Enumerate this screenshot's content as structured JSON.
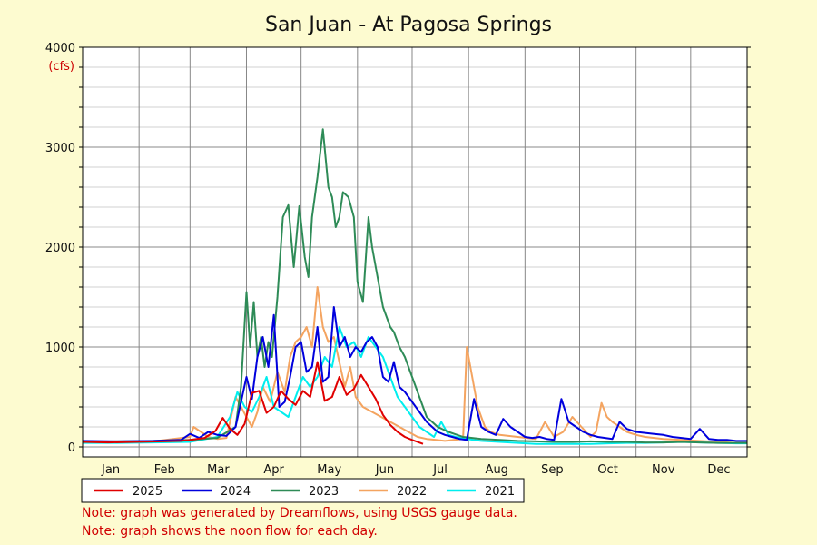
{
  "chart_data": {
    "type": "line",
    "title": "San Juan - At Pagosa Springs",
    "y_unit": "(cfs)",
    "ylim": [
      0,
      4000
    ],
    "yticks": [
      0,
      1000,
      2000,
      3000,
      4000
    ],
    "x_unit": "day_of_year",
    "xlim": [
      1,
      366
    ],
    "months": [
      "Jan",
      "Feb",
      "Mar",
      "Apr",
      "May",
      "Jun",
      "Jul",
      "Aug",
      "Sep",
      "Oct",
      "Nov",
      "Dec"
    ],
    "grid": true,
    "legend_position": "bottom",
    "series": [
      {
        "name": "2025",
        "color": "#e00000",
        "x": [
          1,
          15,
          30,
          45,
          55,
          60,
          68,
          74,
          78,
          82,
          86,
          90,
          94,
          98,
          102,
          106,
          110,
          114,
          118,
          122,
          126,
          130,
          134,
          138,
          142,
          146,
          150,
          154,
          158,
          162,
          166,
          170,
          174,
          178,
          182,
          188
        ],
        "y": [
          50,
          45,
          50,
          55,
          60,
          70,
          90,
          160,
          290,
          180,
          120,
          230,
          540,
          560,
          340,
          400,
          560,
          480,
          420,
          560,
          500,
          850,
          460,
          500,
          700,
          520,
          580,
          720,
          600,
          480,
          320,
          220,
          150,
          100,
          70,
          30
        ]
      },
      {
        "name": "2024",
        "color": "#0000dd",
        "x": [
          1,
          20,
          40,
          55,
          60,
          65,
          70,
          75,
          80,
          85,
          88,
          91,
          94,
          97,
          100,
          103,
          106,
          109,
          112,
          115,
          118,
          121,
          124,
          127,
          130,
          133,
          136,
          139,
          142,
          145,
          148,
          151,
          154,
          157,
          160,
          163,
          166,
          169,
          172,
          175,
          178,
          184,
          190,
          196,
          200,
          204,
          208,
          212,
          216,
          220,
          224,
          228,
          232,
          236,
          240,
          244,
          248,
          252,
          256,
          260,
          264,
          268,
          272,
          276,
          280,
          284,
          288,
          292,
          296,
          300,
          305,
          310,
          315,
          320,
          325,
          330,
          335,
          340,
          345,
          350,
          355,
          360,
          366
        ],
        "y": [
          60,
          55,
          60,
          70,
          130,
          90,
          150,
          120,
          110,
          200,
          450,
          700,
          480,
          900,
          1100,
          800,
          1320,
          400,
          450,
          700,
          1000,
          1050,
          750,
          800,
          1200,
          650,
          700,
          1400,
          1000,
          1100,
          900,
          1000,
          950,
          1050,
          1100,
          1000,
          700,
          650,
          850,
          600,
          550,
          400,
          250,
          150,
          120,
          100,
          80,
          70,
          480,
          200,
          150,
          120,
          280,
          200,
          150,
          100,
          90,
          100,
          80,
          70,
          480,
          250,
          200,
          150,
          120,
          100,
          90,
          80,
          250,
          180,
          150,
          140,
          130,
          120,
          100,
          90,
          80,
          180,
          80,
          70,
          70,
          60,
          60
        ]
      },
      {
        "name": "2023",
        "color": "#2e8b57",
        "x": [
          1,
          20,
          40,
          60,
          75,
          85,
          88,
          91,
          93,
          95,
          97,
          99,
          101,
          103,
          105,
          108,
          111,
          114,
          117,
          120,
          123,
          125,
          127,
          130,
          133,
          136,
          138,
          140,
          142,
          144,
          147,
          150,
          152,
          155,
          158,
          160,
          163,
          166,
          168,
          170,
          172,
          175,
          178,
          182,
          186,
          190,
          196,
          202,
          210,
          220,
          230,
          240,
          250,
          260,
          270,
          280,
          290,
          300,
          310,
          320,
          330,
          340,
          350,
          360,
          366
        ],
        "y": [
          50,
          55,
          60,
          70,
          90,
          200,
          600,
          1550,
          1000,
          1450,
          900,
          1100,
          800,
          1050,
          900,
          1500,
          2300,
          2420,
          1800,
          2410,
          1900,
          1700,
          2300,
          2700,
          3180,
          2600,
          2500,
          2200,
          2300,
          2550,
          2500,
          2300,
          1650,
          1450,
          2300,
          2000,
          1700,
          1400,
          1300,
          1200,
          1150,
          1000,
          900,
          700,
          500,
          300,
          200,
          150,
          100,
          80,
          70,
          60,
          55,
          50,
          50,
          55,
          50,
          50,
          45,
          45,
          50,
          45,
          40,
          40,
          40
        ]
      },
      {
        "name": "2022",
        "color": "#f4a460",
        "x": [
          1,
          20,
          40,
          60,
          62,
          66,
          70,
          75,
          80,
          85,
          88,
          91,
          94,
          97,
          100,
          104,
          108,
          112,
          115,
          118,
          121,
          124,
          127,
          130,
          133,
          136,
          139,
          142,
          145,
          148,
          151,
          155,
          160,
          165,
          170,
          175,
          180,
          185,
          190,
          195,
          200,
          205,
          210,
          212,
          214,
          216,
          218,
          220,
          222,
          225,
          230,
          240,
          250,
          255,
          260,
          265,
          270,
          275,
          280,
          283,
          286,
          289,
          292,
          296,
          300,
          305,
          310,
          320,
          330,
          340,
          350,
          360,
          366
        ],
        "y": [
          50,
          50,
          55,
          100,
          200,
          150,
          100,
          80,
          90,
          500,
          400,
          300,
          200,
          350,
          600,
          450,
          750,
          550,
          900,
          1050,
          1100,
          1200,
          1000,
          1600,
          1200,
          1050,
          1100,
          850,
          600,
          800,
          500,
          400,
          350,
          300,
          250,
          200,
          150,
          100,
          80,
          70,
          60,
          70,
          80,
          1000,
          800,
          600,
          400,
          300,
          200,
          150,
          120,
          100,
          80,
          250,
          100,
          150,
          300,
          200,
          100,
          150,
          440,
          300,
          250,
          200,
          150,
          120,
          100,
          80,
          70,
          60,
          50,
          40,
          40
        ]
      },
      {
        "name": "2021",
        "color": "#00eeee",
        "x": [
          1,
          20,
          40,
          60,
          75,
          82,
          86,
          90,
          94,
          98,
          102,
          106,
          110,
          114,
          118,
          122,
          126,
          130,
          134,
          138,
          142,
          146,
          150,
          154,
          158,
          162,
          166,
          170,
          174,
          178,
          182,
          186,
          190,
          194,
          198,
          202,
          206,
          212,
          220,
          230,
          240,
          250,
          260,
          270,
          280,
          290,
          300,
          310,
          320,
          330,
          340,
          350,
          360,
          366
        ],
        "y": [
          40,
          40,
          45,
          50,
          100,
          300,
          550,
          400,
          350,
          500,
          700,
          400,
          350,
          300,
          500,
          700,
          600,
          700,
          900,
          800,
          1200,
          1000,
          1050,
          900,
          1100,
          1000,
          900,
          700,
          500,
          400,
          300,
          200,
          150,
          100,
          250,
          120,
          100,
          80,
          60,
          50,
          40,
          30,
          30,
          30,
          30,
          35,
          40,
          40,
          45,
          50,
          45,
          40,
          35,
          35
        ]
      }
    ],
    "notes": [
      "Note: graph was generated by Dreamflows, using USGS gauge data.",
      "Note: graph shows the noon flow for each day."
    ]
  }
}
